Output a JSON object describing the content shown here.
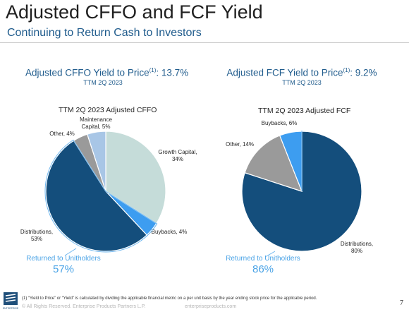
{
  "header": {
    "title": "Adjusted CFFO and FCF Yield",
    "subtitle": "Continuing to Return Cash to Investors"
  },
  "left": {
    "metric_label": "Adjusted CFFO Yield to Price",
    "metric_sup": "(1)",
    "metric_value": ":  13.7%",
    "metric_period": "TTM 2Q 2023",
    "returned_label": "Returned to Unitholders",
    "returned_value": "57%"
  },
  "right": {
    "metric_label": "Adjusted FCF Yield to Price",
    "metric_sup": "(1)",
    "metric_value": ":  9.2%",
    "metric_period": "TTM 2Q 2023",
    "returned_label": "Returned to Unitholders",
    "returned_value": "86%"
  },
  "chart_data": [
    {
      "type": "pie",
      "title": "TTM 2Q 2023 Adjusted CFFO",
      "slices": [
        {
          "name": "Growth Capital",
          "label_line1": "Growth Capital,",
          "label_line2": "34%",
          "value": 34,
          "color": "#c5dcd9"
        },
        {
          "name": "Buybacks",
          "label_line1": "Buybacks, 4%",
          "label_line2": "",
          "value": 4,
          "color": "#3d9df0"
        },
        {
          "name": "Distributions",
          "label_line1": "Distributions,",
          "label_line2": "53%",
          "value": 53,
          "color": "#144e7c"
        },
        {
          "name": "Other",
          "label_line1": "Other, 4%",
          "label_line2": "",
          "value": 4,
          "color": "#9a9a9a"
        },
        {
          "name": "Maintenance Capital",
          "label_line1": "Maintenance",
          "label_line2": "Capital, 5%",
          "value": 5,
          "color": "#a8c6e6"
        }
      ],
      "start": "12 o'clock, clockwise"
    },
    {
      "type": "pie",
      "title": "TTM 2Q 2023 Adjusted FCF",
      "slices": [
        {
          "name": "Distributions",
          "label_line1": "Distributions,",
          "label_line2": "80%",
          "value": 80,
          "color": "#144e7c"
        },
        {
          "name": "Other",
          "label_line1": "Other, 14%",
          "label_line2": "",
          "value": 14,
          "color": "#9a9a9a"
        },
        {
          "name": "Buybacks",
          "label_line1": "Buybacks, 6%",
          "label_line2": "",
          "value": 6,
          "color": "#3d9df0"
        }
      ],
      "start": "12 o'clock, clockwise"
    }
  ],
  "footer": {
    "footnote": "(1)   “Yield to Price” or “Yield” is calculated by dividing the applicable financial metric on a per unit basis by the year ending stock price for the applicable period.",
    "copyright": "© All Rights Reserved. Enterprise Products Partners L.P.",
    "site": "enterpriseproducts.com",
    "page_number": "7",
    "logo_text": "ENTERPRISE"
  },
  "colors": {
    "accent": "#1f5b8c",
    "returned": "#4aa3e6"
  }
}
